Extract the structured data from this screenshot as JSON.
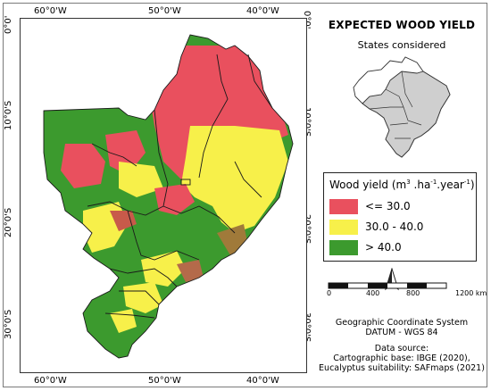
{
  "map": {
    "top_ticks": [
      "60°0'W",
      "50°0'W",
      "40°0'W"
    ],
    "bottom_ticks": [
      "60°0'W",
      "50°0'W",
      "40°0'W"
    ],
    "left_ticks": [
      "0°0'",
      "10°0'S",
      "20°0'S",
      "30°0'S"
    ],
    "right_ticks": [
      "0°0'",
      "10°0'S",
      "20°0'S",
      "30°0'S"
    ]
  },
  "title": "EXPECTED WOOD YIELD",
  "subtitle": "States considered",
  "legend": {
    "title_prefix": "Wood yield (m",
    "sup1": "3",
    "mid1": " .ha",
    "sup2": "-1",
    "mid2": ".year",
    "sup3": "-1",
    "suffix": ")",
    "items": [
      {
        "label": "<= 30.0",
        "color": "#e9505e"
      },
      {
        "label": "30.0 - 40.0",
        "color": "#f7f04a"
      },
      {
        "label": "> 40.0",
        "color": "#3c9a2e"
      }
    ]
  },
  "scale": {
    "labels": [
      "0",
      "400",
      "800",
      "1200 km"
    ]
  },
  "info": {
    "crs_line1": "Geographic Coordinate System",
    "crs_line2": "DATUM - WGS 84",
    "source_title": "Data source:",
    "source_line1": "Cartographic base: IBGE (2020),",
    "source_line2": "Eucalyptus suitability: SAFmaps (2021)"
  },
  "colors": {
    "red": "#e9505e",
    "yellow": "#f7f04a",
    "green": "#3c9a2e",
    "inset_selected": "#cfcfcf"
  }
}
